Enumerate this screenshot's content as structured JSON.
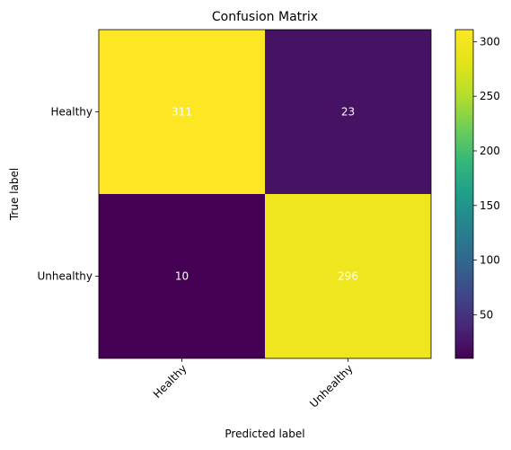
{
  "chart_data": {
    "type": "heatmap",
    "title": "Confusion Matrix",
    "xlabel": "Predicted label",
    "ylabel": "True label",
    "x_categories": [
      "Healthy",
      "Unhealthy"
    ],
    "y_categories": [
      "Healthy",
      "Unhealthy"
    ],
    "values": [
      [
        311,
        23
      ],
      [
        10,
        296
      ]
    ],
    "colormap": "viridis",
    "color_range": [
      10,
      311
    ],
    "colorbar_ticks": [
      50,
      100,
      150,
      200,
      250,
      300
    ],
    "colorbar_tick_labels": [
      "50",
      "100",
      "150",
      "200",
      "250",
      "300"
    ],
    "annotation_text_color": "#ffffff"
  }
}
